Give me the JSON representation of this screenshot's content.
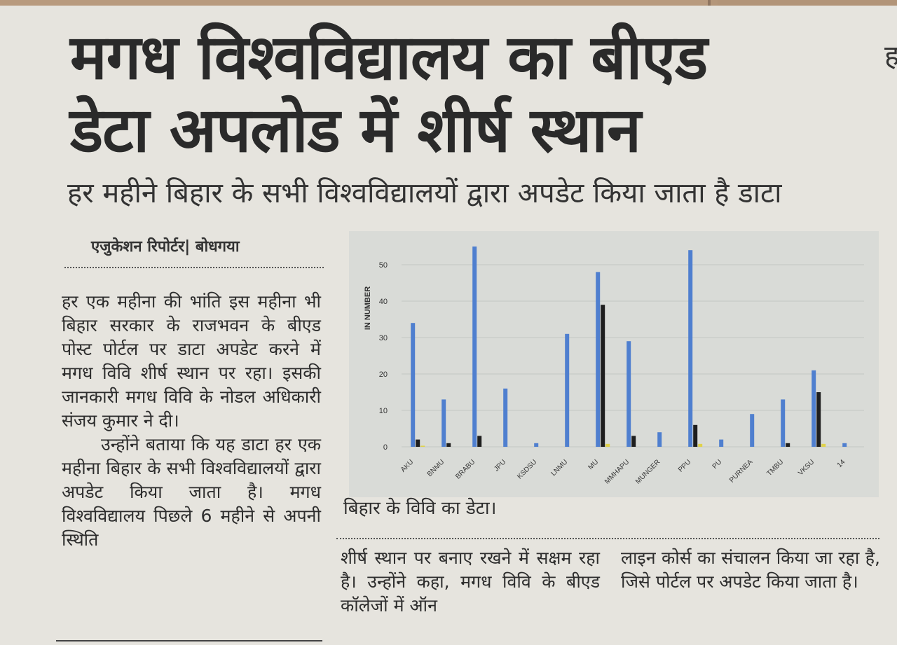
{
  "headline_line1": "मगध विश्वविद्यालय का बीएड",
  "headline_line2": "डेटा अपलोड में शीर्ष स्थान",
  "subheadline": "हर महीने बिहार के सभी विश्वविद्यालयों द्वारा अपडेट किया जाता है डाटा",
  "byline": "एजुकेशन रिपोर्टर| बोधगया",
  "column1_para1": "हर एक महीना की भांति इस महीना भी बिहार सरकार के राजभवन के बीएड पोस्ट पोर्टल पर डाटा अपडेट करने में मगध विवि शीर्ष स्थान पर रहा। इसकी जानकारी मगध विवि के नोडल अधिकारी संजय कुमार ने दी।",
  "column1_para2": "उन्होंने बताया कि यह डाटा हर एक महीना बिहार के सभी विश्वविद्यालयों द्वारा अपडेट किया जाता है। मगध विश्वविद्यालय पिछले 6 महीने से अपनी स्थिति",
  "column2_text": "शीर्ष स्थान पर बनाए रखने में सक्षम रहा है। उन्होंने कहा, मगध विवि के बीएड कॉलेजों में ऑन",
  "column3_text": "लाइन कोर्स का संचालन किया जा रहा है, जिसे पोर्टल पर अपडेट किया जाता है।",
  "chart_caption": "बिहार के विवि का डेटा।",
  "chart_data": {
    "type": "bar",
    "ylabel": "IN NUMBER",
    "ylim": [
      0,
      55
    ],
    "yticks": [
      0,
      10,
      20,
      30,
      40,
      50
    ],
    "grid": true,
    "categories": [
      "AKU",
      "BNMU",
      "BRABU",
      "JPU",
      "KSDSU",
      "LNMU",
      "MU",
      "MMHAPU",
      "MUNGER",
      "PPU",
      "PU",
      "PURNEA",
      "TMBU",
      "VKSU",
      "14"
    ],
    "series": [
      {
        "color": "#4f7fcf",
        "values": [
          34,
          13,
          55,
          16,
          1,
          31,
          48,
          29,
          4,
          54,
          2,
          9,
          13,
          21,
          1
        ]
      },
      {
        "color": "#1e1e1e",
        "values": [
          2,
          1,
          3,
          0,
          0,
          0,
          39,
          3,
          0,
          6,
          0,
          0,
          1,
          15,
          0
        ]
      },
      {
        "color": "#e0d24a",
        "values": [
          0.3,
          0,
          0,
          0,
          0,
          0,
          0.8,
          0,
          0,
          0.8,
          0,
          0,
          0,
          0.8,
          0
        ]
      }
    ],
    "colors": {
      "background": "#d9dbd7",
      "grid": "#c4c7c3",
      "text": "#333333"
    }
  }
}
